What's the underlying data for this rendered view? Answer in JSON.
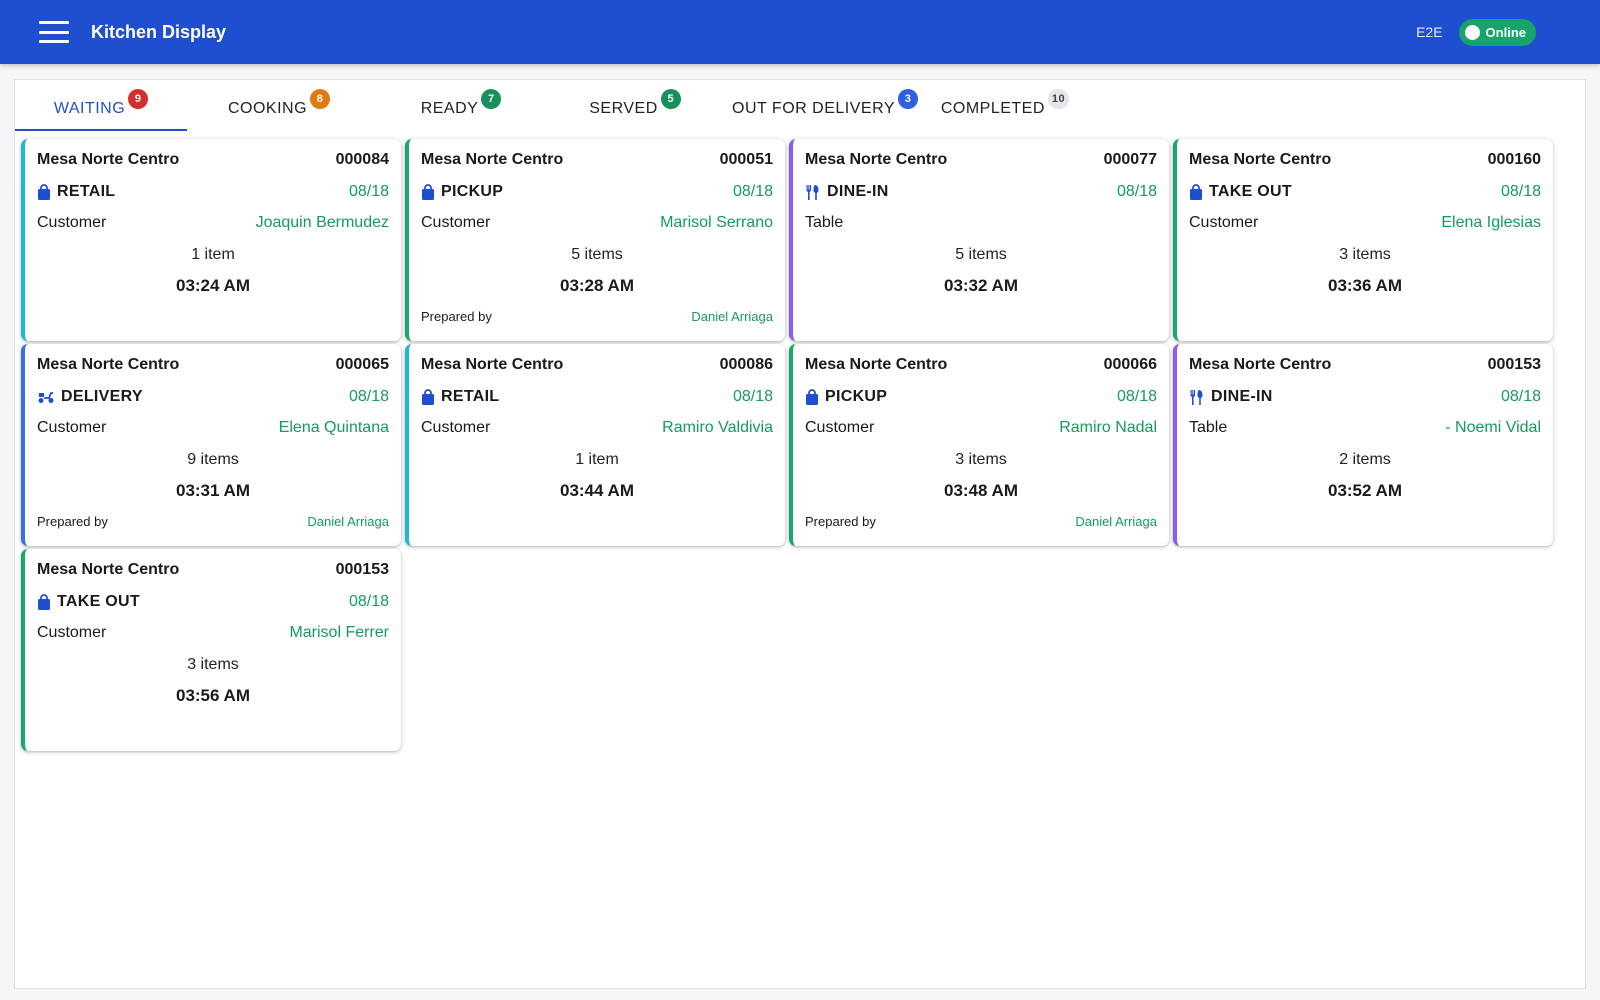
{
  "header": {
    "title": "Kitchen Display",
    "user_code": "E2E",
    "status": "Online"
  },
  "colors": {
    "appbar": "#1f4fd1",
    "accent_green": "#169a5d",
    "retail": "#21b7d4",
    "pickup": "#17a86b",
    "dinein": "#8a5cf0",
    "delivery": "#3d6fe0"
  },
  "tabs": [
    {
      "label": "WAITING",
      "count": "9",
      "badge_color": "#d32f2f",
      "active": true
    },
    {
      "label": "COOKING",
      "count": "8",
      "badge_color": "#e07b12"
    },
    {
      "label": "READY",
      "count": "7",
      "badge_color": "#17915a"
    },
    {
      "label": "SERVED",
      "count": "5",
      "badge_color": "#17915a"
    },
    {
      "label": "OUT FOR DELIVERY",
      "count": "3",
      "badge_color": "#2f5fe0"
    },
    {
      "label": "COMPLETED",
      "count": "10",
      "badge_color": "#e3e6eb"
    }
  ],
  "orders": [
    {
      "location": "Mesa Norte Centro",
      "number": "000084",
      "type": "RETAIL",
      "icon": "bag-icon",
      "date": "08/18",
      "party_label": "Customer",
      "party_value": "Joaquin Bermudez",
      "items": "1 item",
      "time": "03:24 AM",
      "prepared_label": "",
      "prepared_by": "",
      "accent": "#21b7d4"
    },
    {
      "location": "Mesa Norte Centro",
      "number": "000051",
      "type": "PICKUP",
      "icon": "bag-icon",
      "date": "08/18",
      "party_label": "Customer",
      "party_value": "Marisol Serrano",
      "items": "5 items",
      "time": "03:28 AM",
      "prepared_label": "Prepared by",
      "prepared_by": "Daniel Arriaga",
      "accent": "#17a86b"
    },
    {
      "location": "Mesa Norte Centro",
      "number": "000077",
      "type": "DINE-IN",
      "icon": "utensils-icon",
      "date": "08/18",
      "party_label": "Table",
      "party_value": "",
      "items": "5 items",
      "time": "03:32 AM",
      "prepared_label": "",
      "prepared_by": "",
      "accent": "#8a5cf0"
    },
    {
      "location": "Mesa Norte Centro",
      "number": "000160",
      "type": "TAKE OUT",
      "icon": "bag-icon",
      "date": "08/18",
      "party_label": "Customer",
      "party_value": "Elena Iglesias",
      "items": "3 items",
      "time": "03:36 AM",
      "prepared_label": "",
      "prepared_by": "",
      "accent": "#17a86b"
    },
    {
      "location": "Mesa Norte Centro",
      "number": "000065",
      "type": "DELIVERY",
      "icon": "scooter-icon",
      "date": "08/18",
      "party_label": "Customer",
      "party_value": "Elena Quintana",
      "items": "9 items",
      "time": "03:31 AM",
      "prepared_label": "Prepared by",
      "prepared_by": "Daniel Arriaga",
      "accent": "#3d6fe0"
    },
    {
      "location": "Mesa Norte Centro",
      "number": "000086",
      "type": "RETAIL",
      "icon": "bag-icon",
      "date": "08/18",
      "party_label": "Customer",
      "party_value": "Ramiro Valdivia",
      "items": "1 item",
      "time": "03:44 AM",
      "prepared_label": "",
      "prepared_by": "",
      "accent": "#21b7d4"
    },
    {
      "location": "Mesa Norte Centro",
      "number": "000066",
      "type": "PICKUP",
      "icon": "bag-icon",
      "date": "08/18",
      "party_label": "Customer",
      "party_value": "Ramiro Nadal",
      "items": "3 items",
      "time": "03:48 AM",
      "prepared_label": "Prepared by",
      "prepared_by": "Daniel Arriaga",
      "accent": "#17a86b"
    },
    {
      "location": "Mesa Norte Centro",
      "number": "000153",
      "type": "DINE-IN",
      "icon": "utensils-icon",
      "date": "08/18",
      "party_label": "Table",
      "party_value": "- Noemi Vidal",
      "items": "2 items",
      "time": "03:52 AM",
      "prepared_label": "",
      "prepared_by": "",
      "accent": "#8a5cf0"
    },
    {
      "location": "Mesa Norte Centro",
      "number": "000153",
      "type": "TAKE OUT",
      "icon": "bag-icon",
      "date": "08/18",
      "party_label": "Customer",
      "party_value": "Marisol Ferrer",
      "items": "3 items",
      "time": "03:56 AM",
      "prepared_label": "",
      "prepared_by": "",
      "accent": "#17a86b"
    }
  ]
}
